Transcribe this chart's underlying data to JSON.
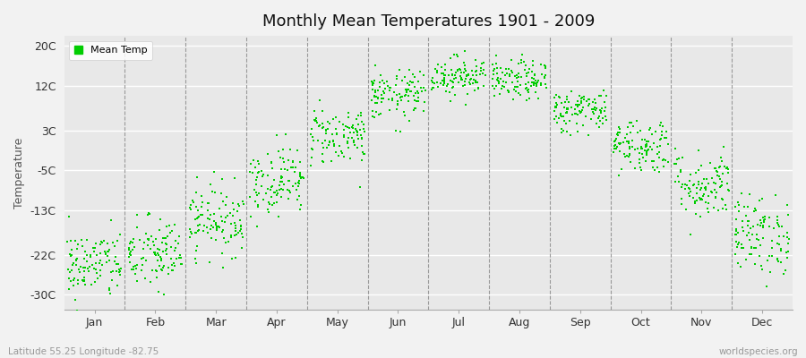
{
  "title": "Monthly Mean Temperatures 1901 - 2009",
  "ylabel": "Temperature",
  "subtitle_left": "Latitude 55.25 Longitude -82.75",
  "subtitle_right": "worldspecies.org",
  "legend_label": "Mean Temp",
  "dot_color": "#00cc00",
  "bg_color": "#f2f2f2",
  "plot_bg_color": "#e8e8e8",
  "months": [
    "Jan",
    "Feb",
    "Mar",
    "Apr",
    "May",
    "Jun",
    "Jul",
    "Aug",
    "Sep",
    "Oct",
    "Nov",
    "Dec"
  ],
  "yticks": [
    -30,
    -22,
    -13,
    -5,
    3,
    12,
    20
  ],
  "ytick_labels": [
    "-30C",
    "-22C",
    "-13C",
    "-5C",
    "3C",
    "12C",
    "20C"
  ],
  "ylim": [
    -33,
    22
  ],
  "xlim": [
    0,
    12
  ],
  "monthly_means": [
    -24,
    -22,
    -15,
    -7,
    2,
    10,
    14,
    13,
    7,
    0,
    -8,
    -18
  ],
  "monthly_stds": [
    3.5,
    3.8,
    3.5,
    3.5,
    3.0,
    2.5,
    2.0,
    2.0,
    2.2,
    2.8,
    3.5,
    4.0
  ],
  "n_years": 109,
  "dot_size": 3,
  "figsize": [
    9.0,
    4.0
  ],
  "dpi": 100
}
